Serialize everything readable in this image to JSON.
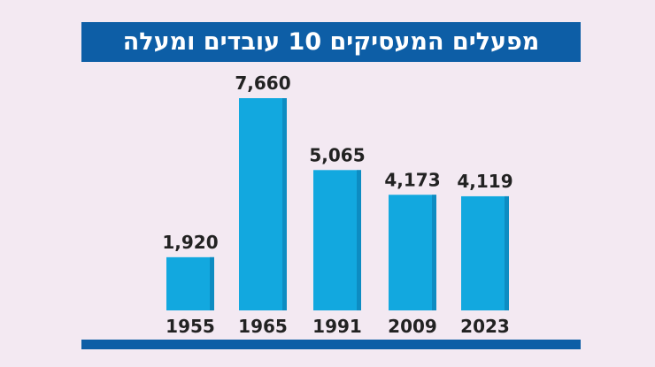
{
  "chart_data": {
    "type": "bar",
    "title": "מפעלים המעסיקים 10 עובדים ומעלה",
    "categories": [
      "1955",
      "1965",
      "1991",
      "2009",
      "2023"
    ],
    "values": [
      1920,
      7660,
      5065,
      4173,
      4119
    ],
    "value_labels": [
      "1,920",
      "7,660",
      "5,065",
      "4,173",
      "4,119"
    ],
    "ylim": [
      0,
      7660
    ],
    "grid": false,
    "legend": "none",
    "colors": {
      "bar": "#12a8df",
      "bar_side": "#0d8cc2",
      "accent": "#0d5ea6",
      "text": "#222222",
      "background": "#f3e9f2"
    }
  }
}
